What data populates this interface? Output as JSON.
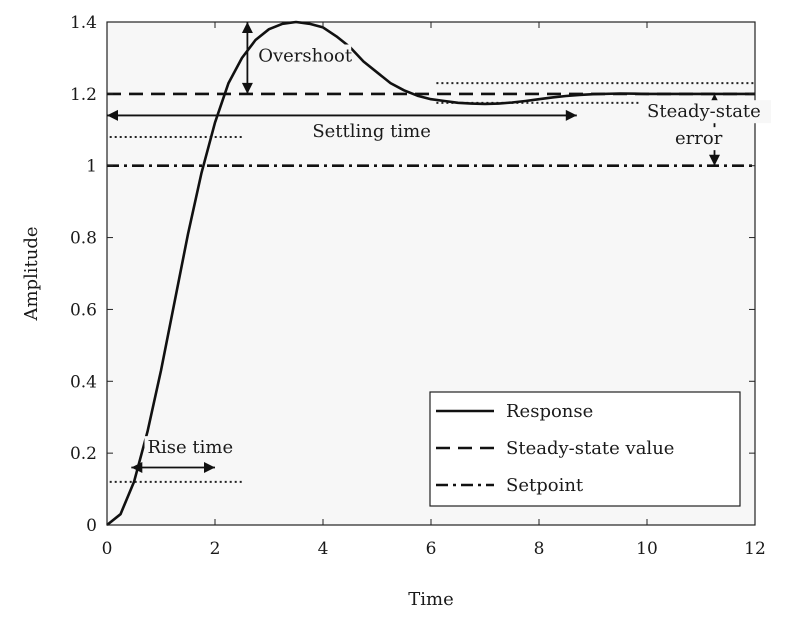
{
  "chart_data": {
    "type": "line",
    "title": "",
    "xlabel": "Time",
    "ylabel": "Amplitude",
    "xlim": [
      0,
      12
    ],
    "ylim": [
      0,
      1.4
    ],
    "x_ticks": [
      0,
      2,
      4,
      6,
      8,
      10,
      12
    ],
    "y_ticks": [
      0,
      0.2,
      0.4,
      0.6,
      0.8,
      1,
      1.2,
      1.4
    ],
    "x_tick_labels": [
      "0",
      "2",
      "4",
      "6",
      "8",
      "10",
      "12"
    ],
    "y_tick_labels": [
      "0",
      "0.2",
      "0.4",
      "0.6",
      "0.8",
      "1",
      "1.2",
      "1.4"
    ],
    "grid": false,
    "legend_position": "bottom-right",
    "series": [
      {
        "name": "Response",
        "style": "solid",
        "x": [
          0,
          0.25,
          0.5,
          0.75,
          1,
          1.25,
          1.5,
          1.75,
          2,
          2.25,
          2.5,
          2.75,
          3,
          3.25,
          3.5,
          3.75,
          4,
          4.25,
          4.5,
          4.75,
          5,
          5.25,
          5.5,
          5.75,
          6,
          6.25,
          6.5,
          6.75,
          7,
          7.25,
          7.5,
          7.75,
          8,
          8.25,
          8.5,
          8.75,
          9,
          9.5,
          10,
          11,
          12
        ],
        "y": [
          0,
          0.03,
          0.12,
          0.26,
          0.43,
          0.62,
          0.81,
          0.98,
          1.12,
          1.23,
          1.3,
          1.35,
          1.38,
          1.395,
          1.4,
          1.395,
          1.385,
          1.36,
          1.33,
          1.29,
          1.26,
          1.23,
          1.21,
          1.195,
          1.185,
          1.18,
          1.175,
          1.173,
          1.172,
          1.173,
          1.176,
          1.18,
          1.185,
          1.19,
          1.194,
          1.197,
          1.199,
          1.201,
          1.2,
          1.2,
          1.2
        ]
      },
      {
        "name": "Steady-state value",
        "style": "dashed",
        "x": [
          0,
          12
        ],
        "y": [
          1.2,
          1.2
        ]
      },
      {
        "name": "Setpoint",
        "style": "dashdot",
        "x": [
          0,
          12
        ],
        "y": [
          1.0,
          1.0
        ]
      }
    ],
    "reference_lines": [
      {
        "name": "rise-time-level",
        "x": [
          0.05,
          2.5
        ],
        "y": 0.12
      },
      {
        "name": "settling-start-level",
        "x": [
          0.05,
          2.5
        ],
        "y": 1.08
      },
      {
        "name": "settling-band-upper",
        "x": [
          6.1,
          12
        ],
        "y": 1.23
      },
      {
        "name": "settling-band-lower",
        "x": [
          6.1,
          12
        ],
        "y": 1.175
      }
    ],
    "annotations": [
      {
        "name": "overshoot",
        "text": "Overshoot",
        "arrow": "vertical",
        "x": 2.6,
        "y_from": 1.2,
        "y_to": 1.4,
        "label_x": 2.8,
        "label_y": 1.29
      },
      {
        "name": "settling-time",
        "text": "Settling time",
        "arrow": "horizontal",
        "y": 1.14,
        "x_from": 0,
        "x_to": 8.7,
        "label_x": 4.9,
        "label_y": 1.08
      },
      {
        "name": "steady-state-error",
        "text": [
          "Steady-state",
          "error"
        ],
        "arrow": "vertical",
        "x": 11.25,
        "y_from": 1.2,
        "y_to": 1.0,
        "label_x": 10.0,
        "label_y": [
          1.135,
          1.06
        ]
      },
      {
        "name": "rise-time",
        "text": "Rise time",
        "arrow": "horizontal",
        "y": 0.16,
        "x_from": 0.45,
        "x_to": 2.0,
        "label_x": 0.75,
        "label_y": 0.2
      }
    ],
    "legend": [
      "Response",
      "Steady-state value",
      "Setpoint"
    ]
  }
}
